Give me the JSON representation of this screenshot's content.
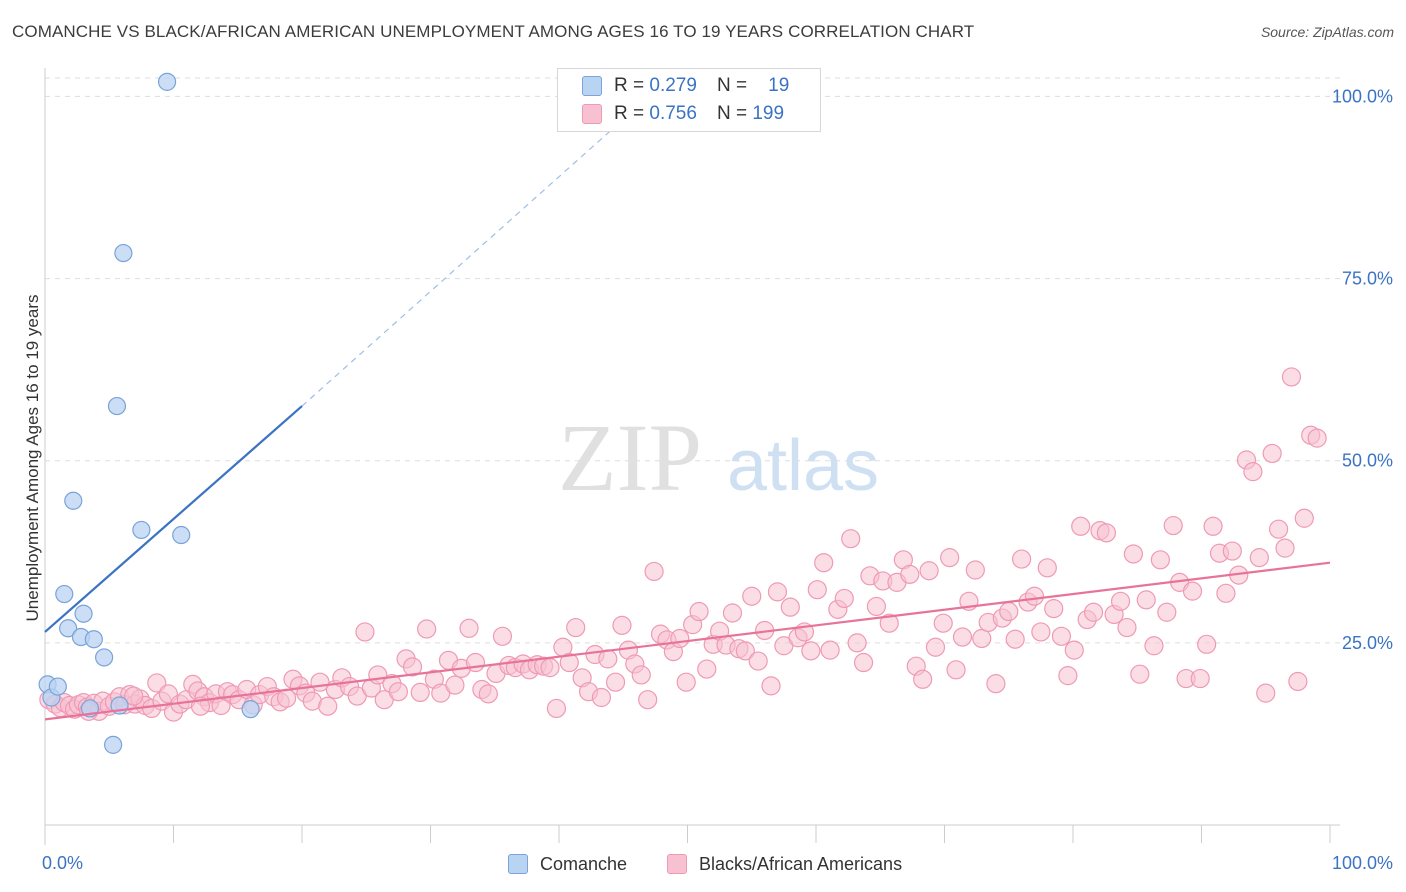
{
  "title": "COMANCHE VS BLACK/AFRICAN AMERICAN UNEMPLOYMENT AMONG AGES 16 TO 19 YEARS CORRELATION CHART",
  "source": "Source: ZipAtlas.com",
  "watermark": {
    "zip": "ZIP",
    "atlas": "atlas"
  },
  "legend": {
    "rows": [
      {
        "r_label": "R =",
        "r_value": "0.279",
        "n_label": "N =",
        "n_value": "19"
      },
      {
        "r_label": "R =",
        "r_value": "0.756",
        "n_label": "N =",
        "n_value": "199"
      }
    ]
  },
  "bottom_legend": [
    "Comanche",
    "Blacks/African Americans"
  ],
  "colors": {
    "comanche_fill": "#b9d3f3",
    "comanche_stroke": "#7aa3d8",
    "comanche_line": "#3b73c4",
    "black_fill": "#f7c1d1",
    "black_stroke": "#ef9ab5",
    "black_line": "#e8739a",
    "axis_label": "#3b73c4",
    "grid": "#dddddd"
  },
  "chart_data": {
    "type": "scatter",
    "title": "COMANCHE VS BLACK/AFRICAN AMERICAN UNEMPLOYMENT AMONG AGES 16 TO 19 YEARS CORRELATION CHART",
    "xlabel": "",
    "ylabel": "Unemployment Among Ages 16 to 19 years",
    "xlim": [
      0,
      100
    ],
    "ylim": [
      0,
      105
    ],
    "x_tick_labels": [
      "0.0%",
      "100.0%"
    ],
    "y_tick_labels": [
      "25.0%",
      "50.0%",
      "75.0%",
      "100.0%"
    ],
    "y_ticks": [
      25,
      50,
      75,
      100
    ],
    "grid": true,
    "series": [
      {
        "name": "Comanche",
        "r": 0.279,
        "n": 19,
        "trend": {
          "x": [
            0,
            20
          ],
          "y": [
            26.5,
            57.5
          ],
          "dashed_extension_to": [
            47,
            100
          ]
        },
        "points": [
          [
            0.2,
            19.3
          ],
          [
            0.5,
            17.5
          ],
          [
            1.0,
            19.0
          ],
          [
            1.5,
            31.7
          ],
          [
            1.8,
            27.0
          ],
          [
            2.2,
            44.5
          ],
          [
            2.8,
            25.8
          ],
          [
            3.0,
            29.0
          ],
          [
            3.5,
            16.0
          ],
          [
            3.8,
            25.5
          ],
          [
            4.6,
            23.0
          ],
          [
            5.3,
            11.0
          ],
          [
            5.6,
            57.5
          ],
          [
            5.8,
            16.4
          ],
          [
            6.1,
            78.5
          ],
          [
            7.5,
            40.5
          ],
          [
            9.5,
            102.0
          ],
          [
            10.6,
            39.8
          ],
          [
            16.0,
            15.9
          ]
        ]
      },
      {
        "name": "Blacks/African Americans",
        "r": 0.756,
        "n": 199,
        "trend": {
          "x": [
            0,
            100
          ],
          "y": [
            14.5,
            36.0
          ]
        },
        "points": [
          [
            0.3,
            17.2
          ],
          [
            0.8,
            16.6
          ],
          [
            1.2,
            16.1
          ],
          [
            1.5,
            16.8
          ],
          [
            1.9,
            16.4
          ],
          [
            2.3,
            15.9
          ],
          [
            2.6,
            16.5
          ],
          [
            3.0,
            16.8
          ],
          [
            3.3,
            16.2
          ],
          [
            3.8,
            16.7
          ],
          [
            4.2,
            15.6
          ],
          [
            4.5,
            17.0
          ],
          [
            5.0,
            16.3
          ],
          [
            5.4,
            16.9
          ],
          [
            5.8,
            17.6
          ],
          [
            6.2,
            16.5
          ],
          [
            6.6,
            17.9
          ],
          [
            7.0,
            16.6
          ],
          [
            7.4,
            17.3
          ],
          [
            7.8,
            16.4
          ],
          [
            8.3,
            16.0
          ],
          [
            8.7,
            19.5
          ],
          [
            9.1,
            17.0
          ],
          [
            9.6,
            18.0
          ],
          [
            10.0,
            15.5
          ],
          [
            10.5,
            16.6
          ],
          [
            11.0,
            17.2
          ],
          [
            11.5,
            19.3
          ],
          [
            11.9,
            18.4
          ],
          [
            12.4,
            17.6
          ],
          [
            12.8,
            16.8
          ],
          [
            13.3,
            18.0
          ],
          [
            13.7,
            16.4
          ],
          [
            14.2,
            18.3
          ],
          [
            14.6,
            17.9
          ],
          [
            15.1,
            17.2
          ],
          [
            15.7,
            18.6
          ],
          [
            16.2,
            16.5
          ],
          [
            16.7,
            17.9
          ],
          [
            17.3,
            19.0
          ],
          [
            17.8,
            17.6
          ],
          [
            18.3,
            16.9
          ],
          [
            18.8,
            17.4
          ],
          [
            19.3,
            20.0
          ],
          [
            19.8,
            19.1
          ],
          [
            20.3,
            18.1
          ],
          [
            20.8,
            17.0
          ],
          [
            21.4,
            19.6
          ],
          [
            22.0,
            16.3
          ],
          [
            22.6,
            18.6
          ],
          [
            23.1,
            20.2
          ],
          [
            23.7,
            19.0
          ],
          [
            24.3,
            17.7
          ],
          [
            24.9,
            26.5
          ],
          [
            25.4,
            18.8
          ],
          [
            25.9,
            20.6
          ],
          [
            26.4,
            17.2
          ],
          [
            27.0,
            19.4
          ],
          [
            27.5,
            18.3
          ],
          [
            28.1,
            22.8
          ],
          [
            28.6,
            21.7
          ],
          [
            29.2,
            18.2
          ],
          [
            29.7,
            26.9
          ],
          [
            30.3,
            20.0
          ],
          [
            30.8,
            18.1
          ],
          [
            31.4,
            22.6
          ],
          [
            31.9,
            19.2
          ],
          [
            32.4,
            21.5
          ],
          [
            33.0,
            27.0
          ],
          [
            33.5,
            22.3
          ],
          [
            34.0,
            18.6
          ],
          [
            34.5,
            18.0
          ],
          [
            35.1,
            20.8
          ],
          [
            35.6,
            25.9
          ],
          [
            36.1,
            21.9
          ],
          [
            36.6,
            21.6
          ],
          [
            37.2,
            22.1
          ],
          [
            37.7,
            21.3
          ],
          [
            38.3,
            22.0
          ],
          [
            38.8,
            21.8
          ],
          [
            39.3,
            21.6
          ],
          [
            39.8,
            16.0
          ],
          [
            40.3,
            24.4
          ],
          [
            40.8,
            22.3
          ],
          [
            41.3,
            27.1
          ],
          [
            41.8,
            20.2
          ],
          [
            42.3,
            18.3
          ],
          [
            42.8,
            23.4
          ],
          [
            43.3,
            17.5
          ],
          [
            43.8,
            22.8
          ],
          [
            44.4,
            19.6
          ],
          [
            44.9,
            27.4
          ],
          [
            45.4,
            24.0
          ],
          [
            45.9,
            22.1
          ],
          [
            46.4,
            20.6
          ],
          [
            46.9,
            17.2
          ],
          [
            47.4,
            34.8
          ],
          [
            47.9,
            26.2
          ],
          [
            48.4,
            25.4
          ],
          [
            48.9,
            23.8
          ],
          [
            49.4,
            25.6
          ],
          [
            49.9,
            19.6
          ],
          [
            50.4,
            27.5
          ],
          [
            50.9,
            29.3
          ],
          [
            51.5,
            21.4
          ],
          [
            52.0,
            24.8
          ],
          [
            52.5,
            26.6
          ],
          [
            53.0,
            24.7
          ],
          [
            53.5,
            29.1
          ],
          [
            54.0,
            24.2
          ],
          [
            54.5,
            23.9
          ],
          [
            55.0,
            31.4
          ],
          [
            55.5,
            22.5
          ],
          [
            56.0,
            26.7
          ],
          [
            56.5,
            19.1
          ],
          [
            57.0,
            32.0
          ],
          [
            57.5,
            24.6
          ],
          [
            58.0,
            29.9
          ],
          [
            58.6,
            25.7
          ],
          [
            59.1,
            26.5
          ],
          [
            59.6,
            23.9
          ],
          [
            60.1,
            32.3
          ],
          [
            60.6,
            36.0
          ],
          [
            61.1,
            24.0
          ],
          [
            61.7,
            29.6
          ],
          [
            62.2,
            31.1
          ],
          [
            62.7,
            39.3
          ],
          [
            63.2,
            25.0
          ],
          [
            63.7,
            22.3
          ],
          [
            64.2,
            34.2
          ],
          [
            64.7,
            30.0
          ],
          [
            65.2,
            33.5
          ],
          [
            65.7,
            27.7
          ],
          [
            66.3,
            33.3
          ],
          [
            66.8,
            36.4
          ],
          [
            67.3,
            34.4
          ],
          [
            67.8,
            21.8
          ],
          [
            68.3,
            20.0
          ],
          [
            68.8,
            34.9
          ],
          [
            69.3,
            24.4
          ],
          [
            69.9,
            27.7
          ],
          [
            70.4,
            36.7
          ],
          [
            70.9,
            21.3
          ],
          [
            71.4,
            25.8
          ],
          [
            71.9,
            30.7
          ],
          [
            72.4,
            35.0
          ],
          [
            72.9,
            25.6
          ],
          [
            73.4,
            27.8
          ],
          [
            74.0,
            19.4
          ],
          [
            74.5,
            28.4
          ],
          [
            75.0,
            29.3
          ],
          [
            75.5,
            25.5
          ],
          [
            76.0,
            36.5
          ],
          [
            76.5,
            30.6
          ],
          [
            77.0,
            31.4
          ],
          [
            77.5,
            26.5
          ],
          [
            78.0,
            35.3
          ],
          [
            78.5,
            29.7
          ],
          [
            79.1,
            25.9
          ],
          [
            79.6,
            20.5
          ],
          [
            80.1,
            24.0
          ],
          [
            80.6,
            41.0
          ],
          [
            81.1,
            28.2
          ],
          [
            81.6,
            29.2
          ],
          [
            82.1,
            40.4
          ],
          [
            82.6,
            40.1
          ],
          [
            83.2,
            28.9
          ],
          [
            83.7,
            30.7
          ],
          [
            84.2,
            27.1
          ],
          [
            84.7,
            37.2
          ],
          [
            85.2,
            20.7
          ],
          [
            85.7,
            30.9
          ],
          [
            86.3,
            24.6
          ],
          [
            86.8,
            36.4
          ],
          [
            87.3,
            29.2
          ],
          [
            87.8,
            41.1
          ],
          [
            88.3,
            33.3
          ],
          [
            88.8,
            20.1
          ],
          [
            89.3,
            32.1
          ],
          [
            89.9,
            20.1
          ],
          [
            90.4,
            24.8
          ],
          [
            90.9,
            41.0
          ],
          [
            91.4,
            37.3
          ],
          [
            91.9,
            31.8
          ],
          [
            92.4,
            37.6
          ],
          [
            92.9,
            34.3
          ],
          [
            93.5,
            50.1
          ],
          [
            94.0,
            48.5
          ],
          [
            94.5,
            36.7
          ],
          [
            95.0,
            18.1
          ],
          [
            95.5,
            51.0
          ],
          [
            96.0,
            40.6
          ],
          [
            96.5,
            38.0
          ],
          [
            97.0,
            61.5
          ],
          [
            97.5,
            19.7
          ],
          [
            98.0,
            42.1
          ],
          [
            98.5,
            53.5
          ],
          [
            99.0,
            53.1
          ],
          [
            3.4,
            15.6
          ],
          [
            6.9,
            17.7
          ],
          [
            12.1,
            16.3
          ]
        ]
      }
    ]
  }
}
